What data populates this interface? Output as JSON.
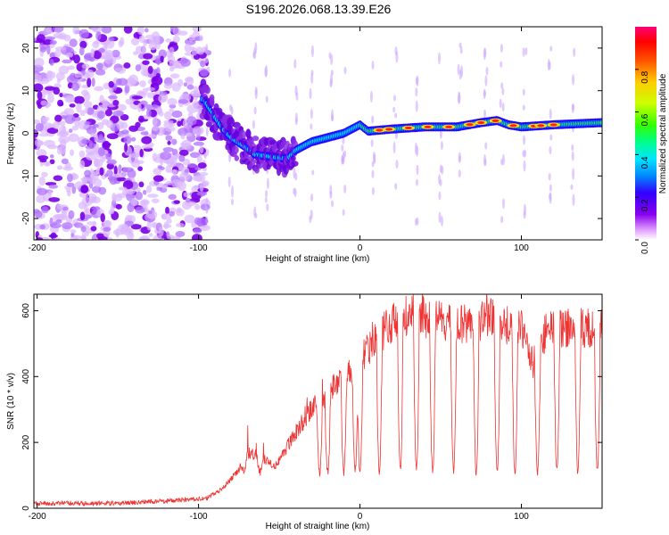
{
  "title": "S196.2026.068.13.39.E26",
  "colors": {
    "line": "#ee3333",
    "purple": "#8a2be2",
    "spectrum": [
      "#ffffff",
      "#d9a6ff",
      "#8800ee",
      "#3300ff",
      "#0066ff",
      "#00ccff",
      "#00ff99",
      "#33ff00",
      "#ccff00",
      "#ffcc00",
      "#ff6600",
      "#ff0000",
      "#ff0066"
    ]
  },
  "chart_data": [
    {
      "type": "heatmap",
      "name": "spectrogram",
      "xlabel": "Height of straight line (km)",
      "ylabel": "Frequency (Hz)",
      "xlim": [
        -202,
        150
      ],
      "ylim": [
        -25,
        25
      ],
      "xticks": [
        -200,
        -100,
        0,
        100
      ],
      "yticks": [
        -20,
        -10,
        0,
        10,
        20
      ],
      "ridge": [
        [
          -97,
          8
        ],
        [
          -92,
          5
        ],
        [
          -85,
          1
        ],
        [
          -80,
          -1
        ],
        [
          -72,
          -3
        ],
        [
          -65,
          -5
        ],
        [
          -55,
          -5.5
        ],
        [
          -45,
          -6
        ],
        [
          -40,
          -4
        ],
        [
          -30,
          -2
        ],
        [
          -20,
          -1
        ],
        [
          -10,
          0
        ],
        [
          -5,
          1
        ],
        [
          0,
          2
        ],
        [
          5,
          0.5
        ],
        [
          20,
          1
        ],
        [
          40,
          1.5
        ],
        [
          60,
          1.5
        ],
        [
          75,
          2.5
        ],
        [
          85,
          3
        ],
        [
          92,
          2
        ],
        [
          100,
          1.5
        ],
        [
          120,
          2
        ],
        [
          150,
          2.5
        ]
      ],
      "colorbar": {
        "label": "Normalized spectral amplitude",
        "range": [
          0,
          1
        ],
        "ticks": [
          "0.0",
          "0.2",
          "0.4",
          "0.6",
          "0.8"
        ]
      }
    },
    {
      "type": "line",
      "name": "snr",
      "xlabel": "Height of straight line (km)",
      "ylabel": "SNR (10 * v/v)",
      "xlim": [
        -202,
        150
      ],
      "ylim": [
        0,
        650
      ],
      "xticks": [
        -200,
        -100,
        0,
        100
      ],
      "yticks": [
        0,
        200,
        400,
        600
      ],
      "envelope": [
        [
          -202,
          15
        ],
        [
          -150,
          15
        ],
        [
          -110,
          25
        ],
        [
          -95,
          30
        ],
        [
          -85,
          60
        ],
        [
          -75,
          120
        ],
        [
          -68,
          170
        ],
        [
          -60,
          150
        ],
        [
          -52,
          130
        ],
        [
          -40,
          230
        ],
        [
          -30,
          300
        ],
        [
          -20,
          350
        ],
        [
          -10,
          400
        ],
        [
          0,
          450
        ],
        [
          10,
          520
        ],
        [
          20,
          560
        ],
        [
          30,
          590
        ],
        [
          40,
          580
        ],
        [
          50,
          570
        ],
        [
          60,
          555
        ],
        [
          70,
          560
        ],
        [
          80,
          580
        ],
        [
          90,
          560
        ],
        [
          100,
          550
        ],
        [
          108,
          420
        ],
        [
          115,
          540
        ],
        [
          130,
          550
        ],
        [
          150,
          545
        ]
      ],
      "dropouts": [
        -72,
        -62,
        -25,
        -20,
        -10,
        -3,
        0,
        12,
        25,
        35,
        45,
        58,
        72,
        85,
        96,
        110,
        122,
        135,
        147
      ],
      "dropout_level": 110
    }
  ]
}
